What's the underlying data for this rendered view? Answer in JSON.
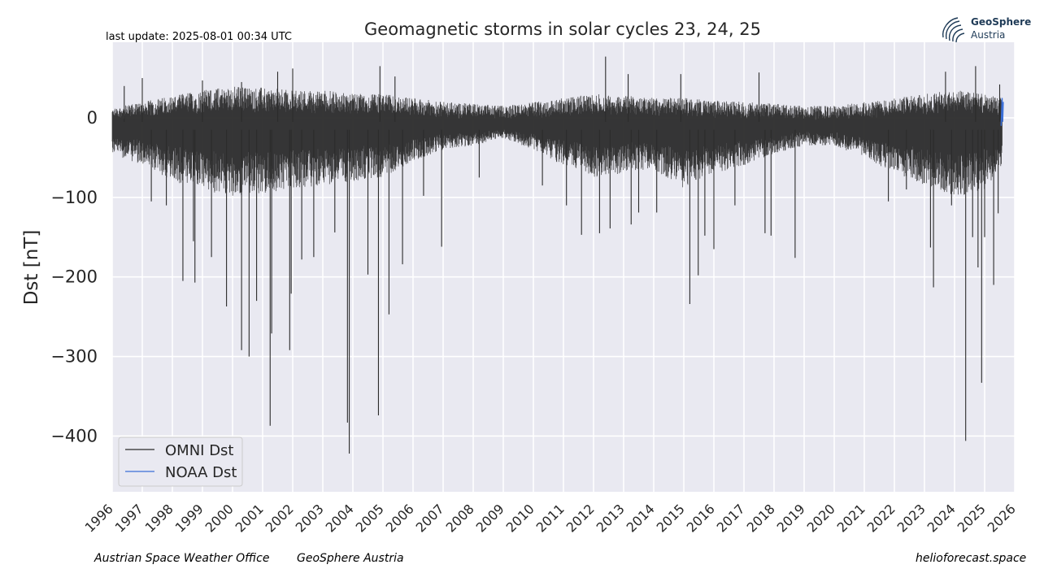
{
  "header": {
    "last_update": "last update: 2025-08-01 00:34 UTC"
  },
  "logo": {
    "name_line1": "GeoSphere",
    "name_line2": "Austria"
  },
  "footer": {
    "left_1": "Austrian Space Weather Office",
    "left_2": "GeoSphere Austria",
    "right": "helioforecast.space"
  },
  "colors": {
    "plot_background": "#e9e9f1",
    "grid": "#ffffff",
    "omni_line": "#2b2b2b",
    "noaa_line": "#3b6fd8",
    "brand": "#1f3b57"
  },
  "chart_data": {
    "type": "line",
    "title": "Geomagnetic storms in solar cycles 23, 24, 25",
    "xlabel": "",
    "ylabel": "Dst [nT]",
    "xlim": [
      1996,
      2026
    ],
    "ylim": [
      -470,
      95
    ],
    "x_ticks": [
      "1996",
      "1997",
      "1998",
      "1999",
      "2000",
      "2001",
      "2002",
      "2003",
      "2004",
      "2005",
      "2006",
      "2007",
      "2008",
      "2009",
      "2010",
      "2011",
      "2012",
      "2013",
      "2014",
      "2015",
      "2016",
      "2017",
      "2018",
      "2019",
      "2020",
      "2021",
      "2022",
      "2023",
      "2024",
      "2025",
      "2026"
    ],
    "y_ticks": [
      0,
      -100,
      -200,
      -300,
      -400
    ],
    "y_tick_labels": [
      "0",
      "−100",
      "−200",
      "−300",
      "−400"
    ],
    "grid": true,
    "legend": {
      "placement": "bottom-left",
      "entries": [
        "OMNI Dst",
        "NOAA Dst"
      ]
    },
    "series": [
      {
        "name": "OMNI Dst",
        "color": "#2b2b2b",
        "note_band": "dense daily variability envelope",
        "envelope": [
          {
            "x": 1996.0,
            "min": -45,
            "max": 12
          },
          {
            "x": 1997.0,
            "min": -60,
            "max": 20
          },
          {
            "x": 1998.0,
            "min": -80,
            "max": 28
          },
          {
            "x": 1999.0,
            "min": -90,
            "max": 35
          },
          {
            "x": 2000.0,
            "min": -100,
            "max": 40
          },
          {
            "x": 2001.0,
            "min": -95,
            "max": 38
          },
          {
            "x": 2002.0,
            "min": -90,
            "max": 35
          },
          {
            "x": 2003.0,
            "min": -85,
            "max": 35
          },
          {
            "x": 2004.0,
            "min": -80,
            "max": 30
          },
          {
            "x": 2005.0,
            "min": -75,
            "max": 30
          },
          {
            "x": 2006.0,
            "min": -55,
            "max": 25
          },
          {
            "x": 2007.0,
            "min": -40,
            "max": 20
          },
          {
            "x": 2008.0,
            "min": -35,
            "max": 18
          },
          {
            "x": 2009.0,
            "min": -25,
            "max": 15
          },
          {
            "x": 2010.0,
            "min": -40,
            "max": 20
          },
          {
            "x": 2011.0,
            "min": -60,
            "max": 25
          },
          {
            "x": 2012.0,
            "min": -75,
            "max": 30
          },
          {
            "x": 2013.0,
            "min": -70,
            "max": 28
          },
          {
            "x": 2014.0,
            "min": -65,
            "max": 25
          },
          {
            "x": 2015.0,
            "min": -90,
            "max": 25
          },
          {
            "x": 2016.0,
            "min": -70,
            "max": 22
          },
          {
            "x": 2017.0,
            "min": -60,
            "max": 20
          },
          {
            "x": 2018.0,
            "min": -45,
            "max": 18
          },
          {
            "x": 2019.0,
            "min": -35,
            "max": 15
          },
          {
            "x": 2020.0,
            "min": -35,
            "max": 15
          },
          {
            "x": 2021.0,
            "min": -50,
            "max": 20
          },
          {
            "x": 2022.0,
            "min": -70,
            "max": 25
          },
          {
            "x": 2023.0,
            "min": -85,
            "max": 30
          },
          {
            "x": 2024.0,
            "min": -100,
            "max": 35
          },
          {
            "x": 2025.0,
            "min": -90,
            "max": 30
          },
          {
            "x": 2025.58,
            "min": -60,
            "max": 25
          }
        ],
        "peaks": [
          {
            "x": 1997.3,
            "y": -105
          },
          {
            "x": 1997.8,
            "y": -110
          },
          {
            "x": 1998.35,
            "y": -205
          },
          {
            "x": 1998.7,
            "y": -155
          },
          {
            "x": 1998.75,
            "y": -207
          },
          {
            "x": 1999.3,
            "y": -175
          },
          {
            "x": 1999.8,
            "y": -237
          },
          {
            "x": 2000.3,
            "y": -292
          },
          {
            "x": 2000.55,
            "y": -300
          },
          {
            "x": 2000.8,
            "y": -230
          },
          {
            "x": 2001.25,
            "y": -387
          },
          {
            "x": 2001.3,
            "y": -271
          },
          {
            "x": 2001.9,
            "y": -292
          },
          {
            "x": 2001.95,
            "y": -221
          },
          {
            "x": 2002.3,
            "y": -178
          },
          {
            "x": 2002.7,
            "y": -175
          },
          {
            "x": 2003.4,
            "y": -144
          },
          {
            "x": 2003.82,
            "y": -383
          },
          {
            "x": 2003.88,
            "y": -422
          },
          {
            "x": 2004.5,
            "y": -197
          },
          {
            "x": 2004.85,
            "y": -374
          },
          {
            "x": 2005.2,
            "y": -247
          },
          {
            "x": 2005.65,
            "y": -184
          },
          {
            "x": 2006.35,
            "y": -98
          },
          {
            "x": 2006.95,
            "y": -162
          },
          {
            "x": 2008.2,
            "y": -75
          },
          {
            "x": 2010.3,
            "y": -85
          },
          {
            "x": 2011.1,
            "y": -110
          },
          {
            "x": 2011.6,
            "y": -147
          },
          {
            "x": 2012.2,
            "y": -145
          },
          {
            "x": 2012.55,
            "y": -139
          },
          {
            "x": 2013.25,
            "y": -134
          },
          {
            "x": 2013.5,
            "y": -119
          },
          {
            "x": 2014.1,
            "y": -119
          },
          {
            "x": 2015.2,
            "y": -234
          },
          {
            "x": 2015.48,
            "y": -198
          },
          {
            "x": 2015.7,
            "y": -148
          },
          {
            "x": 2016.0,
            "y": -165
          },
          {
            "x": 2016.7,
            "y": -110
          },
          {
            "x": 2017.7,
            "y": -145
          },
          {
            "x": 2017.9,
            "y": -148
          },
          {
            "x": 2018.7,
            "y": -176
          },
          {
            "x": 2021.8,
            "y": -105
          },
          {
            "x": 2022.4,
            "y": -90
          },
          {
            "x": 2023.2,
            "y": -163
          },
          {
            "x": 2023.3,
            "y": -213
          },
          {
            "x": 2023.9,
            "y": -110
          },
          {
            "x": 2024.37,
            "y": -406
          },
          {
            "x": 2024.6,
            "y": -150
          },
          {
            "x": 2024.78,
            "y": -188
          },
          {
            "x": 2024.9,
            "y": -333
          },
          {
            "x": 2025.0,
            "y": -150
          },
          {
            "x": 2025.3,
            "y": -210
          },
          {
            "x": 2025.45,
            "y": -120
          }
        ],
        "highs": [
          {
            "x": 1996.4,
            "y": 40
          },
          {
            "x": 1997.0,
            "y": 50
          },
          {
            "x": 1999.0,
            "y": 47
          },
          {
            "x": 2000.3,
            "y": 45
          },
          {
            "x": 2001.5,
            "y": 58
          },
          {
            "x": 2002.0,
            "y": 62
          },
          {
            "x": 2004.9,
            "y": 65
          },
          {
            "x": 2005.4,
            "y": 52
          },
          {
            "x": 2012.4,
            "y": 77
          },
          {
            "x": 2013.15,
            "y": 55
          },
          {
            "x": 2014.9,
            "y": 55
          },
          {
            "x": 2017.5,
            "y": 57
          },
          {
            "x": 2023.7,
            "y": 58
          },
          {
            "x": 2024.7,
            "y": 65
          },
          {
            "x": 2025.5,
            "y": 42
          }
        ]
      },
      {
        "name": "NOAA Dst",
        "color": "#3b6fd8",
        "points": [
          {
            "x": 2025.55,
            "y": -10
          },
          {
            "x": 2025.58,
            "y": 25
          },
          {
            "x": 2025.6,
            "y": -5
          },
          {
            "x": 2025.62,
            "y": 20
          }
        ]
      }
    ]
  }
}
